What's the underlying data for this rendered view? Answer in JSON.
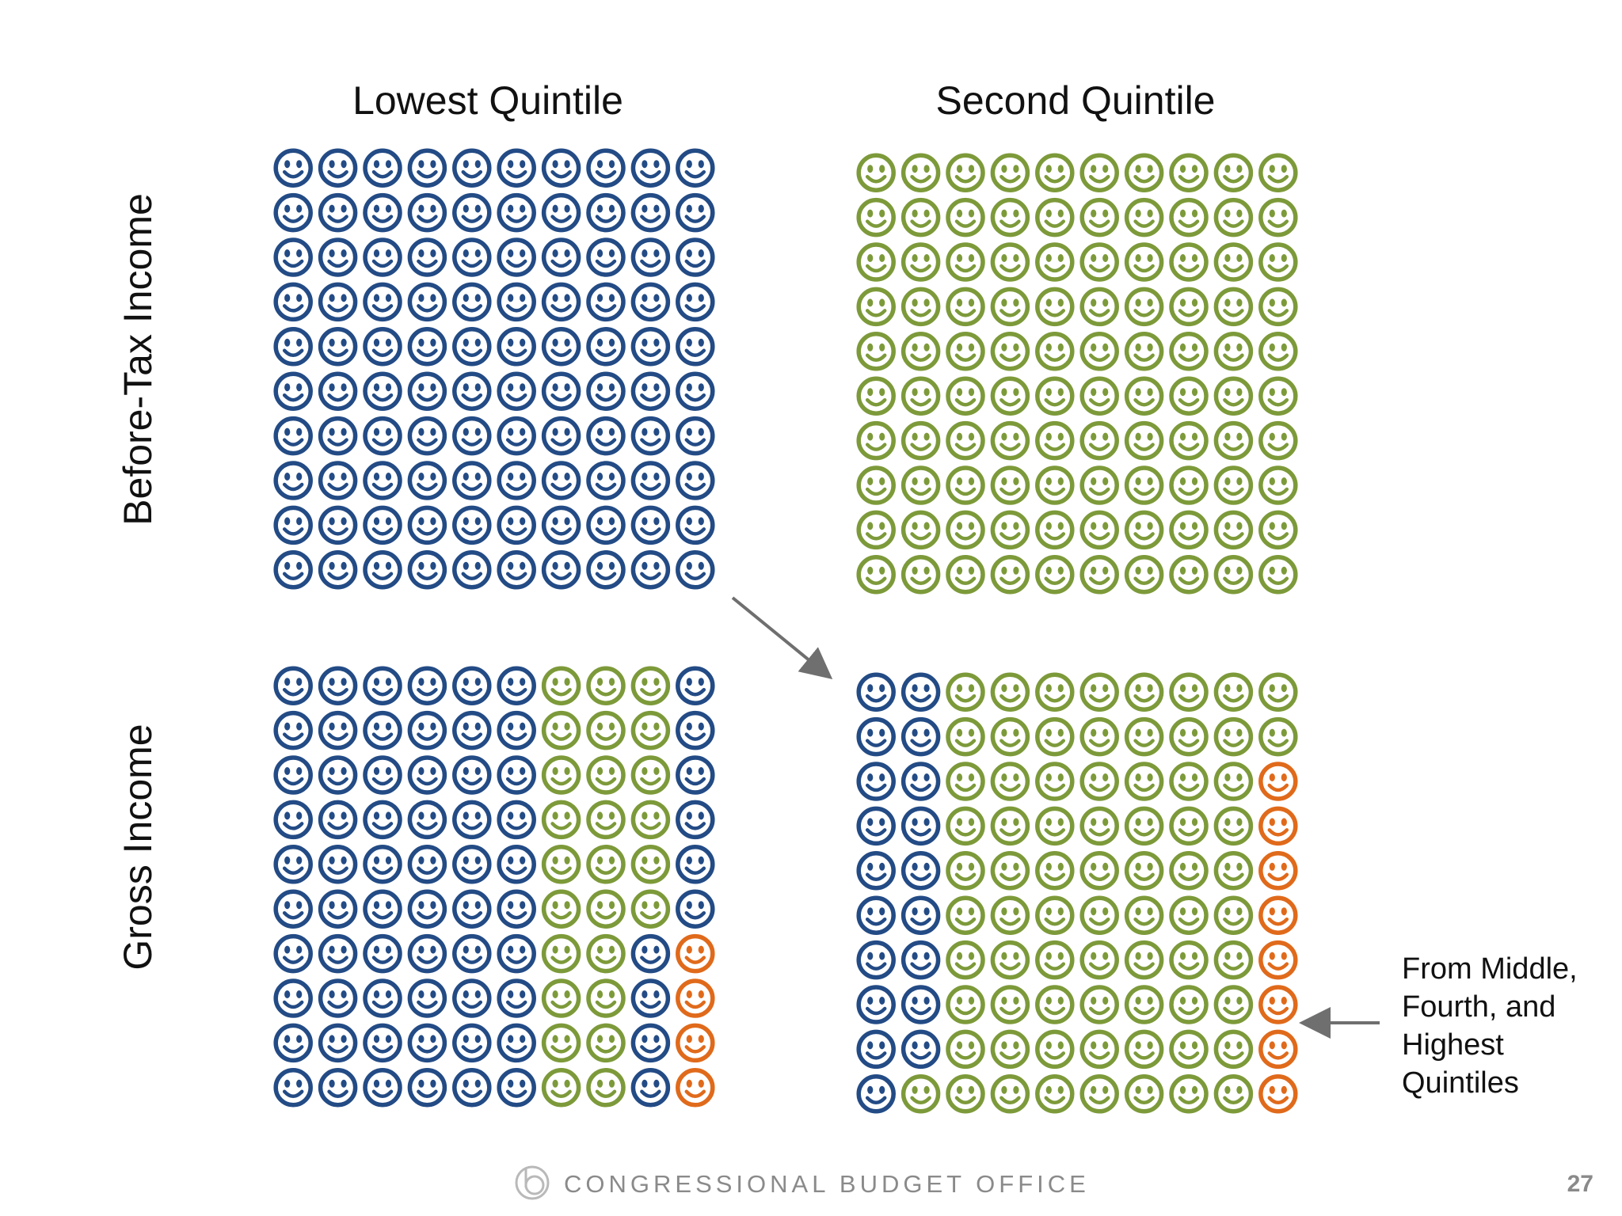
{
  "columns": [
    "Lowest Quintile",
    "Second Quintile"
  ],
  "rows": [
    "Before-Tax Income",
    "Gross Income"
  ],
  "annotation": "From Middle, Fourth, and Highest Quintiles",
  "footer": {
    "org": "CONGRESSIONAL BUDGET OFFICE",
    "page": "27"
  },
  "colors": {
    "lowest": "#234b85",
    "second": "#7d9a3a",
    "upper": "#e06a1b"
  },
  "icon": "smiley-face-icon",
  "panels": [
    {
      "id": "before-lowest",
      "grid": 10,
      "fill_order": "column-major",
      "composition": [
        {
          "group": "lowest",
          "count": 100
        }
      ]
    },
    {
      "id": "before-second",
      "grid": 10,
      "fill_order": "column-major",
      "composition": [
        {
          "group": "second",
          "count": 100
        }
      ]
    },
    {
      "id": "gross-lowest",
      "grid": 10,
      "fill_order": "column-major",
      "composition": [
        {
          "group": "lowest",
          "count": 60
        },
        {
          "group": "second",
          "count": 26
        },
        {
          "group": "lowest",
          "count": 10
        },
        {
          "group": "upper",
          "count": 4
        }
      ]
    },
    {
      "id": "gross-second",
      "grid": 10,
      "fill_order": "column-major",
      "composition": [
        {
          "group": "lowest",
          "count": 19
        },
        {
          "group": "second",
          "count": 73
        },
        {
          "group": "upper",
          "count": 8
        }
      ]
    }
  ]
}
